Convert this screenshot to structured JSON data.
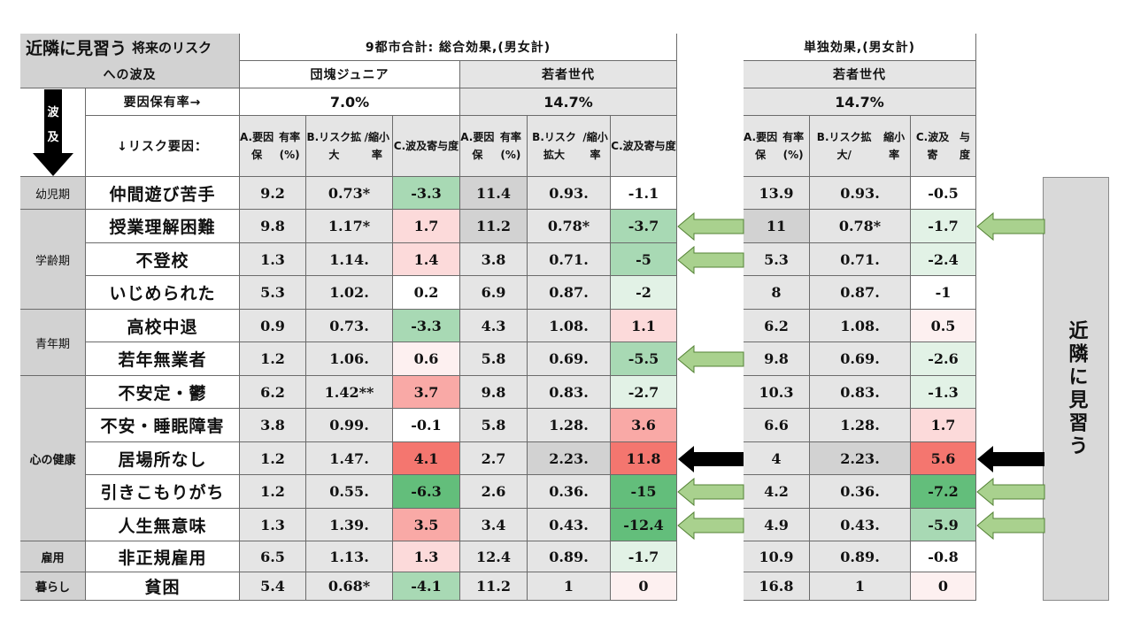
{
  "title": {
    "main": "近隣に見習う",
    "small": "将来のリスク",
    "line2": "への波及"
  },
  "header": {
    "total_effect": "9都市合計: 総合効果,(男女計)",
    "single_effect": "単独効果,(男女計)",
    "groups": [
      "団塊ジュニア",
      "若者世代",
      "若者世代"
    ],
    "holding_label": "要因保有率→",
    "holding_rates": [
      "7.0%",
      "14.7%",
      "14.7%"
    ],
    "risk_label": "↓リスク要因：",
    "flow_label_top": "波",
    "flow_label_bottom": "及",
    "columns": [
      [
        "A.要因保",
        "有率(%)"
      ],
      [
        "B.リスク拡大",
        "/縮小率"
      ],
      [
        "C.波及寄",
        "与度"
      ]
    ],
    "columns_single": [
      [
        "A.要因保",
        "有率(%)"
      ],
      [
        "B.リスク拡大/",
        "縮小率"
      ],
      [
        "C.波及寄",
        "与度"
      ]
    ]
  },
  "stages": [
    {
      "label": "幼児期",
      "rows": 1
    },
    {
      "label": "学齢期",
      "rows": 3
    },
    {
      "label": "青年期",
      "rows": 2
    },
    {
      "label": "心の健康",
      "rows": 5
    },
    {
      "label": "雇用",
      "rows": 1
    },
    {
      "label": "暮らし",
      "rows": 1
    }
  ],
  "rows": [
    {
      "factor": "仲間遊び苦手",
      "dankai": [
        "9.2",
        "0.73*",
        "-3.3"
      ],
      "wakamono": [
        "11.4",
        "0.93.",
        "-1.1"
      ],
      "single": [
        "13.9",
        "0.93.",
        "-0.5"
      ]
    },
    {
      "factor": "授業理解困難",
      "dankai": [
        "9.8",
        "1.17*",
        "1.7"
      ],
      "wakamono": [
        "11.2",
        "0.78*",
        "-3.7"
      ],
      "single": [
        "11",
        "0.78*",
        "-1.7"
      ]
    },
    {
      "factor": "不登校",
      "dankai": [
        "1.3",
        "1.14.",
        "1.4"
      ],
      "wakamono": [
        "3.8",
        "0.71.",
        "-5"
      ],
      "single": [
        "5.3",
        "0.71.",
        "-2.4"
      ]
    },
    {
      "factor": "いじめられた",
      "dankai": [
        "5.3",
        "1.02.",
        "0.2"
      ],
      "wakamono": [
        "6.9",
        "0.87.",
        "-2"
      ],
      "single": [
        "8",
        "0.87.",
        "-1"
      ]
    },
    {
      "factor": "高校中退",
      "dankai": [
        "0.9",
        "0.73.",
        "-3.3"
      ],
      "wakamono": [
        "4.3",
        "1.08.",
        "1.1"
      ],
      "single": [
        "6.2",
        "1.08.",
        "0.5"
      ]
    },
    {
      "factor": "若年無業者",
      "dankai": [
        "1.2",
        "1.06.",
        "0.6"
      ],
      "wakamono": [
        "5.8",
        "0.69.",
        "-5.5"
      ],
      "single": [
        "9.8",
        "0.69.",
        "-2.6"
      ]
    },
    {
      "factor": "不安定・鬱",
      "dankai": [
        "6.2",
        "1.42**",
        "3.7"
      ],
      "wakamono": [
        "9.8",
        "0.83.",
        "-2.7"
      ],
      "single": [
        "10.3",
        "0.83.",
        "-1.3"
      ]
    },
    {
      "factor": "不安・睡眠障害",
      "dankai": [
        "3.8",
        "0.99.",
        "-0.1"
      ],
      "wakamono": [
        "5.8",
        "1.28.",
        "3.6"
      ],
      "single": [
        "6.6",
        "1.28.",
        "1.7"
      ]
    },
    {
      "factor": "居場所なし",
      "dankai": [
        "1.2",
        "1.47.",
        "4.1"
      ],
      "wakamono": [
        "2.7",
        "2.23.",
        "11.8"
      ],
      "single": [
        "4",
        "2.23.",
        "5.6"
      ]
    },
    {
      "factor": "引きこもりがち",
      "dankai": [
        "1.2",
        "0.55.",
        "-6.3"
      ],
      "wakamono": [
        "2.6",
        "0.36.",
        "-15"
      ],
      "single": [
        "4.2",
        "0.36.",
        "-7.2"
      ]
    },
    {
      "factor": "人生無意味",
      "dankai": [
        "1.3",
        "1.39.",
        "3.5"
      ],
      "wakamono": [
        "3.4",
        "0.43.",
        "-12.4"
      ],
      "single": [
        "4.9",
        "0.43.",
        "-5.9"
      ]
    },
    {
      "factor": "非正規雇用",
      "dankai": [
        "6.5",
        "1.13.",
        "1.3"
      ],
      "wakamono": [
        "12.4",
        "0.89.",
        "-1.7"
      ],
      "single": [
        "10.9",
        "0.89.",
        "-0.8"
      ]
    },
    {
      "factor": "貧困",
      "dankai": [
        "5.4",
        "0.68*",
        "-4.1"
      ],
      "wakamono": [
        "11.2",
        "1",
        "0"
      ],
      "single": [
        "16.8",
        "1",
        "0"
      ]
    }
  ],
  "heat_colors": {
    "strong_red": "#f4766f",
    "mid_red": "#f9a9a6",
    "light_red": "#fcdada",
    "faint_red": "#fdf0f0",
    "strong_green": "#63be7b",
    "mid_green": "#a8d9b4",
    "light_green": "#e2f2e6",
    "white": "#ffffff"
  },
  "arrows": {
    "green": "#a9d18e",
    "green_border": "#548235",
    "black": "#000000",
    "markers": [
      {
        "row": 1,
        "style": "green"
      },
      {
        "row": 2,
        "style": "green"
      },
      {
        "row": 5,
        "style": "green"
      },
      {
        "row": 8,
        "style": "black"
      },
      {
        "row": 9,
        "style": "green"
      },
      {
        "row": 10,
        "style": "green"
      }
    ],
    "right_markers": [
      {
        "row": 1,
        "style": "green"
      },
      {
        "row": 8,
        "style": "black"
      },
      {
        "row": 9,
        "style": "green"
      },
      {
        "row": 10,
        "style": "green"
      }
    ]
  },
  "side_label": "近隣に見習う"
}
